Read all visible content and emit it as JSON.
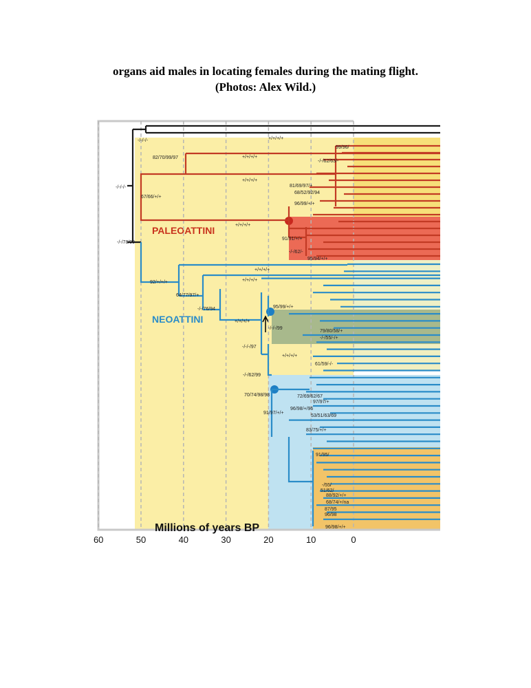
{
  "header": {
    "caption_line1": "organs aid males in locating females during the mating flight.",
    "caption_line2": "(Photos: Alex Wild.)"
  },
  "figure": {
    "clade_labels": [
      "PALEOATTINI",
      "NEOATTINI"
    ],
    "axis": {
      "title": "Millions of years BP",
      "ticks": [
        60,
        50,
        40,
        30,
        20,
        10,
        0
      ]
    },
    "support_values": [
      "-/-/-/-",
      "82/70/99/97",
      "67/66/+/+",
      "-/-/-/-",
      "-/-/78/99",
      "99/96/",
      "-/-/62/63/-",
      "81/69/97/+",
      "68/52/92/94",
      "96/99/+/+",
      "91/91/+/+",
      "-/-/62/-",
      "95/94/+/+",
      "92/+/+/+",
      "64/77/97/+",
      "-/-/76/94",
      "95/99/+/+",
      "-/-/-/99",
      "79/80/58/+",
      "-/-/55/-/+",
      "-/-/-/97",
      "61/59/-/-",
      "-/-/62/99",
      "70/74/98/98",
      "72/69/62/67",
      "97/97/+",
      "96/98/+/96",
      "53/51/63/69",
      "91/97/+/+",
      "83/75/+/+",
      "91/95/",
      "-/55/",
      "51/62/",
      "88/92/+/+",
      "68/74/+/na",
      "87/95",
      "96/98",
      "96/98/+/+",
      "+/+/+/+",
      "+/+/+/+",
      "+/+/+/+",
      "+/+/+/+",
      "+/+/+/+",
      "+/+/+/+",
      "+/+/+/+",
      "+/+/+/+"
    ]
  }
}
